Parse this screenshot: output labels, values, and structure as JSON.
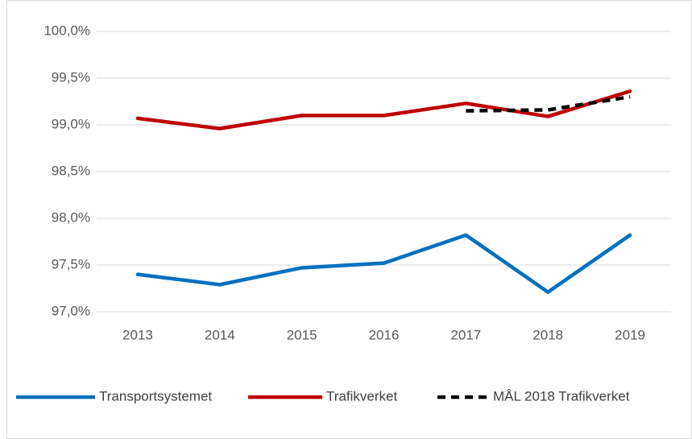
{
  "chart_data": {
    "type": "line",
    "categories": [
      "2013",
      "2014",
      "2015",
      "2016",
      "2017",
      "2018",
      "2019"
    ],
    "series": [
      {
        "name": "Transportsystemet",
        "color": "#0070c0",
        "values": [
          97.4,
          97.29,
          97.47,
          97.52,
          97.82,
          97.21,
          97.82
        ]
      },
      {
        "name": "Trafikverket",
        "color": "#c00000",
        "values": [
          99.07,
          98.96,
          99.1,
          99.1,
          99.23,
          99.09,
          99.36
        ]
      },
      {
        "name": "MÅL 2018 Trafikverket",
        "color": "#000000",
        "dashed": true,
        "values": [
          null,
          null,
          null,
          null,
          99.15,
          99.16,
          99.3
        ]
      }
    ],
    "ylim": [
      97.0,
      100.0
    ],
    "yticks": [
      {
        "value": 97.0,
        "label": "97,0%"
      },
      {
        "value": 97.5,
        "label": "97,5%"
      },
      {
        "value": 98.0,
        "label": "98,0%"
      },
      {
        "value": 98.5,
        "label": "98,5%"
      },
      {
        "value": 99.0,
        "label": "99,0%"
      },
      {
        "value": 99.5,
        "label": "99,5%"
      },
      {
        "value": 100.0,
        "label": "100,0%"
      }
    ],
    "grid": true,
    "legend": "bottom"
  }
}
